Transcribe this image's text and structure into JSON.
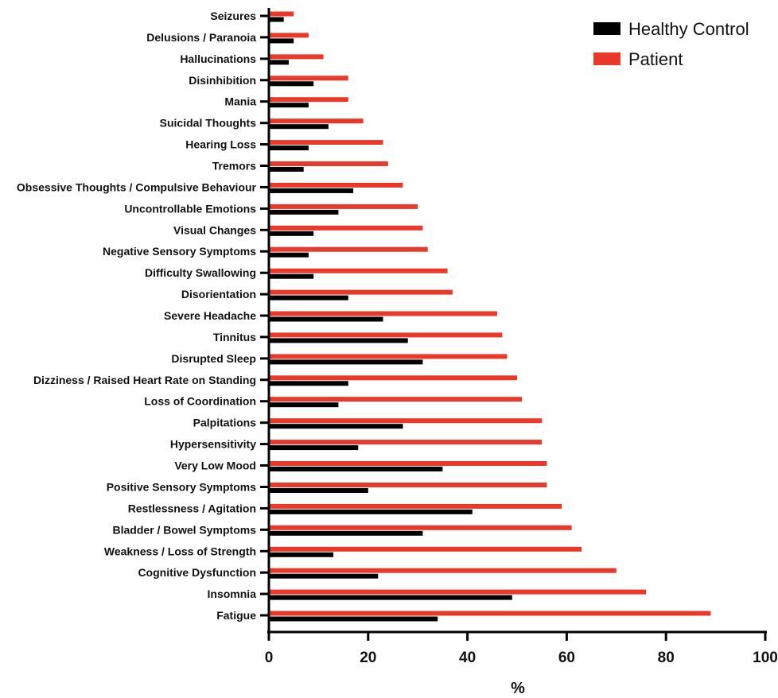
{
  "chart_data": {
    "type": "bar",
    "orientation": "horizontal",
    "categories": [
      "Seizures",
      "Delusions / Paranoia",
      "Hallucinations",
      "Disinhibition",
      "Mania",
      "Suicidal Thoughts",
      "Hearing Loss",
      "Tremors",
      "Obsessive Thoughts / Compulsive Behaviour",
      "Uncontrollable Emotions",
      "Visual Changes",
      "Negative Sensory Symptoms",
      "Difficulty Swallowing",
      "Disorientation",
      "Severe Headache",
      "Tinnitus",
      "Disrupted Sleep",
      "Dizziness / Raised Heart Rate on Standing",
      "Loss of Coordination",
      "Palpitations",
      "Hypersensitivity",
      "Very Low Mood",
      "Positive Sensory Symptoms",
      "Restlessness / Agitation",
      "Bladder / Bowel Symptoms",
      "Weakness / Loss of Strength",
      "Cognitive Dysfunction",
      "Insomnia",
      "Fatigue"
    ],
    "series": [
      {
        "name": "Patient",
        "color": "#e8392a",
        "values": [
          5,
          8,
          11,
          16,
          16,
          19,
          23,
          24,
          27,
          30,
          31,
          32,
          36,
          37,
          46,
          47,
          48,
          50,
          51,
          55,
          55,
          56,
          56,
          59,
          61,
          63,
          70,
          76,
          89
        ]
      },
      {
        "name": "Healthy Control",
        "color": "#000000",
        "values": [
          3,
          5,
          4,
          9,
          8,
          12,
          8,
          7,
          17,
          14,
          9,
          8,
          9,
          16,
          23,
          28,
          31,
          16,
          14,
          27,
          18,
          35,
          20,
          41,
          31,
          13,
          22,
          49,
          34
        ]
      }
    ],
    "xlabel": "%",
    "ylabel": "",
    "title": "",
    "xlim": [
      0,
      100
    ],
    "xticks": [
      0,
      20,
      40,
      60,
      80,
      100
    ],
    "grid": false,
    "legend": {
      "position": "top-right",
      "entries": [
        "Healthy Control",
        "Patient"
      ]
    }
  }
}
